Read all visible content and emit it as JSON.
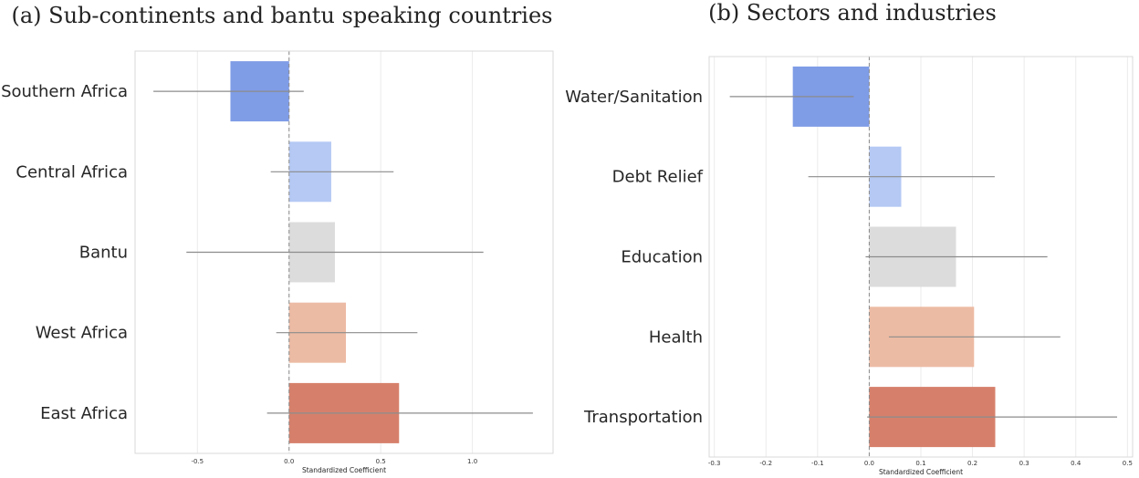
{
  "chart_data": [
    {
      "type": "bar",
      "orientation": "horizontal",
      "title": "(a) Sub-continents and bantu speaking countries",
      "xlabel": "Standardized Coefficient",
      "categories": [
        "Southern Africa",
        "Central Africa",
        "Bantu",
        "West Africa",
        "East Africa"
      ],
      "values": [
        -0.32,
        0.23,
        0.25,
        0.31,
        0.6
      ],
      "ci_low": [
        -0.74,
        -0.1,
        -0.56,
        -0.07,
        -0.12
      ],
      "ci_high": [
        0.08,
        0.57,
        1.06,
        0.7,
        1.33
      ],
      "colors": [
        "#7f9ce6",
        "#b5c9f4",
        "#dcdcdc",
        "#ecbba4",
        "#d6806b"
      ],
      "xlim": [
        -0.84,
        1.44
      ],
      "xticks": [
        "-0.5",
        "0.0",
        "0.5",
        "1.0"
      ],
      "xtick_values": [
        -0.5,
        0,
        0.5,
        1.0
      ],
      "grid": true
    },
    {
      "type": "bar",
      "orientation": "horizontal",
      "title": "(b) Sectors and industries",
      "xlabel": "Standardized Coefficient",
      "categories": [
        "Water/Sanitation",
        "Debt Relief",
        "Education",
        "Health",
        "Transportation"
      ],
      "values": [
        -0.148,
        0.062,
        0.168,
        0.203,
        0.244
      ],
      "ci_low": [
        -0.27,
        -0.118,
        -0.007,
        0.038,
        -0.004
      ],
      "ci_high": [
        -0.03,
        0.243,
        0.345,
        0.37,
        0.48
      ],
      "colors": [
        "#7f9ce6",
        "#b5c9f4",
        "#dcdcdc",
        "#ecbba4",
        "#d6806b"
      ],
      "xlim": [
        -0.31,
        0.51
      ],
      "xticks": [
        "-0.3",
        "-0.2",
        "-0.1",
        "0.0",
        "0.1",
        "0.2",
        "0.3",
        "0.4",
        "0.5"
      ],
      "xtick_values": [
        -0.3,
        -0.2,
        -0.1,
        0,
        0.1,
        0.2,
        0.3,
        0.4,
        0.5
      ],
      "grid": true
    }
  ]
}
